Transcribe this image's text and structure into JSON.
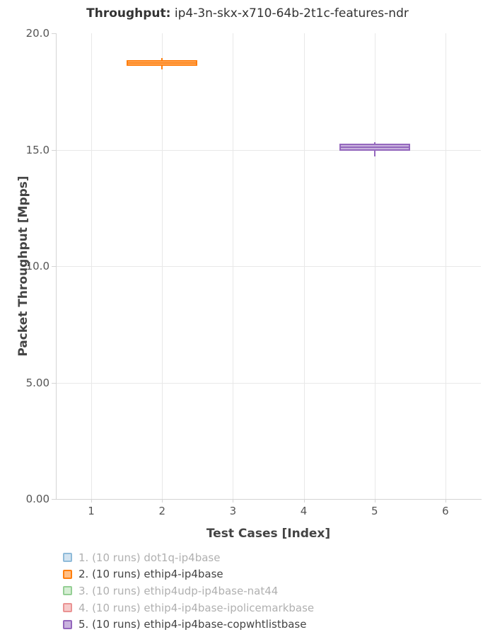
{
  "title": {
    "prefix": "Throughput:",
    "text": " ip4-3n-skx-x710-64b-2t1c-features-ndr"
  },
  "colors": {
    "background": "#ffffff",
    "grid": "#e8e8e8",
    "axis_line": "#d4d4d4",
    "tick_mark": "#d4d4d4",
    "title_text": "#333333",
    "axis_title_text": "#444444",
    "tick_text": "#555555",
    "legend_text_active": "#444444",
    "legend_text_muted": "#b0b0b0"
  },
  "chart_data": {
    "type": "box",
    "title": "Throughput: ip4-3n-skx-x710-64b-2t1c-features-ndr",
    "xlabel": "Test Cases [Index]",
    "ylabel": "Packet Throughput [Mpps]",
    "x_range": [
      0.5,
      6.5
    ],
    "y_range": [
      0,
      20
    ],
    "grid": true,
    "legend_position": "bottom-left",
    "x_ticks": [
      {
        "value": 1,
        "label": "1"
      },
      {
        "value": 2,
        "label": "2"
      },
      {
        "value": 3,
        "label": "3"
      },
      {
        "value": 4,
        "label": "4"
      },
      {
        "value": 5,
        "label": "5"
      },
      {
        "value": 6,
        "label": "6"
      }
    ],
    "y_ticks": [
      {
        "value": 0,
        "label": "0.00",
        "gridline": false
      },
      {
        "value": 5,
        "label": "5.00",
        "gridline": true
      },
      {
        "value": 10,
        "label": "10.0",
        "gridline": true
      },
      {
        "value": 15,
        "label": "15.0",
        "gridline": true
      },
      {
        "value": 20,
        "label": "20.0",
        "gridline": false
      }
    ],
    "series": [
      {
        "label": "1. (10 runs) dot1q-ip4base",
        "color": "#1f77b4",
        "visible": false
      },
      {
        "label": "2. (10 runs) ethip4-ip4base",
        "color": "#ff7f0e",
        "fill": "#ffbf86",
        "visible": true,
        "box": {
          "x": 2,
          "low": 18.45,
          "q1": 18.59,
          "median": 18.72,
          "q3": 18.85,
          "high": 18.93
        }
      },
      {
        "label": "3. (10 runs) ethip4udp-ip4base-nat44",
        "color": "#2ca02c",
        "visible": false
      },
      {
        "label": "4. (10 runs) ethip4-ip4base-ipolicemarkbase",
        "color": "#d62728",
        "visible": false
      },
      {
        "label": "5. (10 runs) ethip4-ip4base-copwhtlistbase",
        "color": "#9467bd",
        "fill": "#c9b3de",
        "visible": true,
        "box": {
          "x": 5,
          "low": 14.7,
          "q1": 14.94,
          "median": 15.11,
          "q3": 15.26,
          "high": 15.33
        }
      }
    ]
  },
  "legend": {
    "items": [
      {
        "label": "1. (10 runs) dot1q-ip4base",
        "swatch_border": "#8fbbd9",
        "swatch_fill": "#d2e3f0",
        "muted": true
      },
      {
        "label": "2. (10 runs) ethip4-ip4base",
        "swatch_border": "#ff7f0e",
        "swatch_fill": "#ffbf86",
        "muted": false
      },
      {
        "label": "3. (10 runs) ethip4udp-ip4base-nat44",
        "swatch_border": "#95cf95",
        "swatch_fill": "#d6eed4",
        "muted": true
      },
      {
        "label": "4. (10 runs) ethip4-ip4base-ipolicemarkbase",
        "swatch_border": "#ea9393",
        "swatch_fill": "#f6caca",
        "muted": true
      },
      {
        "label": "5. (10 runs) ethip4-ip4base-copwhtlistbase",
        "swatch_border": "#9467bd",
        "swatch_fill": "#c9b3de",
        "muted": false
      }
    ]
  }
}
